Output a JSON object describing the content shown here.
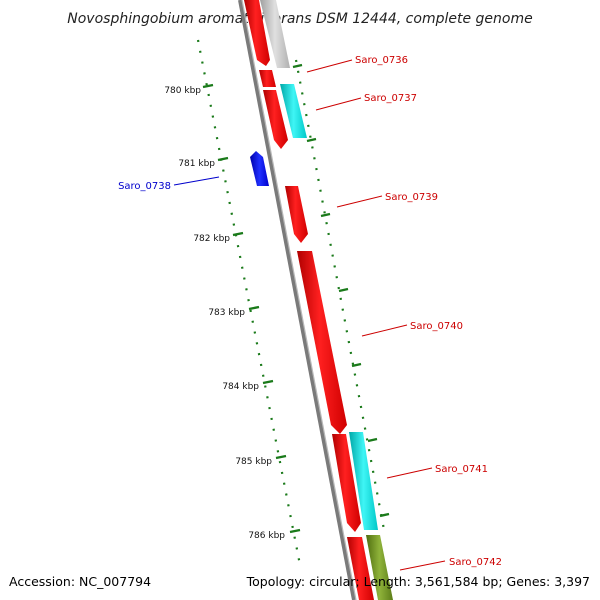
{
  "title": "Novosphingobium aromaticivorans DSM 12444, complete genome",
  "footer": {
    "accession": "Accession: NC_007794",
    "topology": "Topology: circular; Length: 3,561,584 bp; Genes: 3,397"
  },
  "ticks": [
    {
      "label": "780 kbp"
    },
    {
      "label": "781 kbp"
    },
    {
      "label": "782 kbp"
    },
    {
      "label": "783 kbp"
    },
    {
      "label": "784 kbp"
    },
    {
      "label": "785 kbp"
    },
    {
      "label": "786 kbp"
    }
  ],
  "genes": [
    {
      "label": "Saro_0736",
      "color": "#cc0000"
    },
    {
      "label": "Saro_0737",
      "color": "#cc0000"
    },
    {
      "label": "Saro_0738",
      "color": "#0000cc"
    },
    {
      "label": "Saro_0739",
      "color": "#cc0000"
    },
    {
      "label": "Saro_0740",
      "color": "#cc0000"
    },
    {
      "label": "Saro_0741",
      "color": "#cc0000"
    },
    {
      "label": "Saro_0742",
      "color": "#cc0000"
    }
  ],
  "colors": {
    "gene_red": "#ff0000",
    "gene_cyan": "#00e5e5",
    "gene_blue": "#0000ee",
    "gene_gray": "#c8c8c8",
    "gene_olive": "#6b8e23",
    "backbone": "#808080",
    "tick": "#1a7a1a"
  }
}
